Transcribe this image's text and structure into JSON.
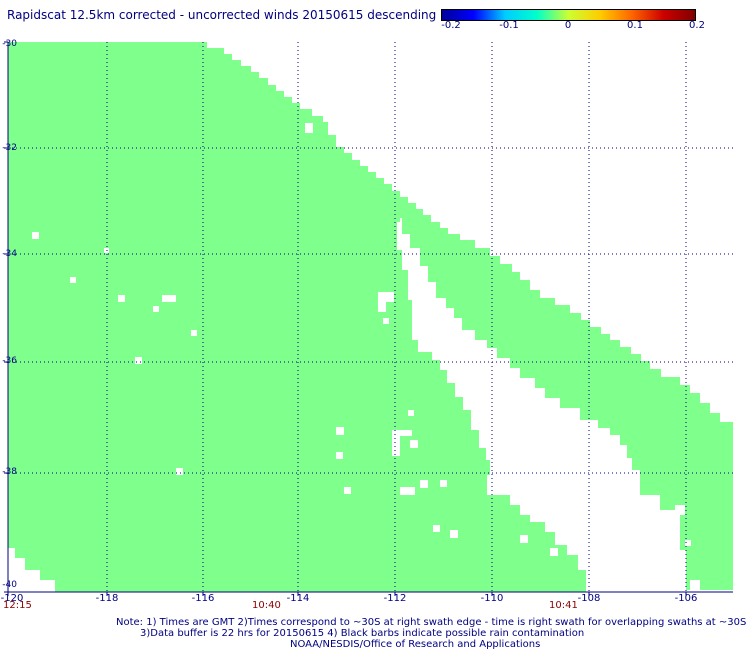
{
  "title": "Rapidscat 12.5km corrected - uncorrected winds 20150615 descending",
  "colorbar": {
    "ticks": [
      "-0.2",
      "-0.1",
      "0",
      "0.1",
      "0.2"
    ],
    "colors": [
      "#000099",
      "#0000ff",
      "#00ccff",
      "#00ffcc",
      "#ccff33",
      "#ffcc00",
      "#ff6600",
      "#cc0000",
      "#800000"
    ]
  },
  "swath_color": "#7fff8c",
  "grid_color": "#000080",
  "latitude_labels": [
    "-30",
    "-32",
    "-34",
    "-36",
    "-38",
    "-40"
  ],
  "longitude_labels": [
    "-120",
    "-118",
    "-116",
    "-114",
    "-112",
    "-110",
    "-108",
    "-106"
  ],
  "time_labels": [
    "12:15",
    "10:40",
    "10:41"
  ],
  "notes": [
    "Note: 1) Times are GMT 2)Times correspond to ~30S at right swath edge - time is right swath for overlapping swaths at ~30S",
    "3)Data buffer is 22 hrs for 20150615 4) Black barbs indicate possible rain contamination",
    "NOAA/NESDIS/Office of Research and Applications"
  ],
  "chart_data": {
    "type": "heatmap",
    "title": "Rapidscat 12.5km corrected - uncorrected winds 20150615 descending",
    "date": "20150615",
    "pass": "descending",
    "xlabel": "",
    "ylabel": "",
    "xlim": [
      -120,
      -105
    ],
    "ylim": [
      -40,
      -30
    ],
    "x_ticks": [
      -120,
      -118,
      -116,
      -114,
      -112,
      -110,
      -108,
      -106
    ],
    "y_ticks": [
      -30,
      -32,
      -34,
      -36,
      -38,
      -40
    ],
    "value_range": [
      -0.2,
      0.2
    ],
    "dominant_value": 0,
    "grid": true,
    "legend": "colorbar top-right",
    "time_labels": [
      "12:15",
      "10:40",
      "10:41"
    ]
  }
}
